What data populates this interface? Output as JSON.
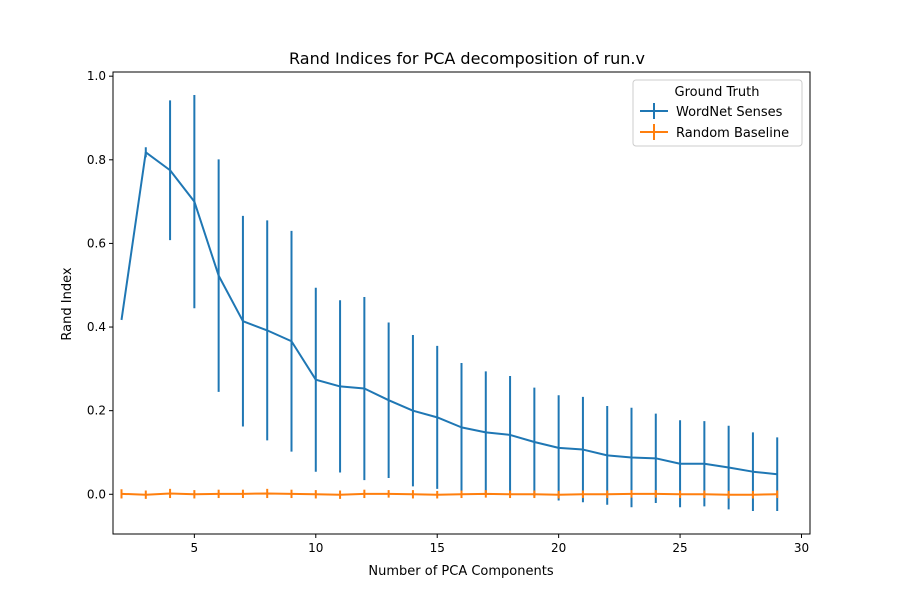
{
  "chart_data": {
    "type": "line",
    "title": "Rand Indices for PCA decomposition of run.v",
    "xlabel": "Number of PCA Components",
    "ylabel": "Rand Index",
    "xlim": [
      1.65,
      30.35
    ],
    "ylim": [
      -0.095,
      1.01
    ],
    "xticks": [
      5,
      10,
      15,
      20,
      25,
      30
    ],
    "yticks": [
      0.0,
      0.2,
      0.4,
      0.6,
      0.8,
      1.0
    ],
    "ytick_labels": [
      "0.0",
      "0.2",
      "0.4",
      "0.6",
      "0.8",
      "1.0"
    ],
    "grid": false,
    "legend": {
      "title": "Ground Truth",
      "position": "top-right"
    },
    "x": [
      2,
      3,
      4,
      5,
      6,
      7,
      8,
      9,
      10,
      11,
      12,
      13,
      14,
      15,
      16,
      17,
      18,
      19,
      20,
      21,
      22,
      23,
      24,
      25,
      26,
      27,
      28,
      29
    ],
    "series": [
      {
        "name": "WordNet Senses",
        "color": "#1f77b4",
        "values": [
          0.417,
          0.818,
          0.775,
          0.7,
          0.523,
          0.414,
          0.392,
          0.366,
          0.274,
          0.258,
          0.253,
          0.225,
          0.2,
          0.184,
          0.16,
          0.148,
          0.142,
          0.125,
          0.111,
          0.107,
          0.093,
          0.088,
          0.086,
          0.073,
          0.073,
          0.064,
          0.054,
          0.048
        ],
        "errors": [
          0.0,
          0.012,
          0.167,
          0.255,
          0.278,
          0.252,
          0.263,
          0.264,
          0.22,
          0.206,
          0.219,
          0.186,
          0.181,
          0.171,
          0.154,
          0.146,
          0.141,
          0.13,
          0.126,
          0.126,
          0.118,
          0.119,
          0.107,
          0.104,
          0.102,
          0.1,
          0.094,
          0.088
        ]
      },
      {
        "name": "Random Baseline",
        "color": "#ff7f0e",
        "values": [
          0.001,
          -0.001,
          0.002,
          0.0,
          0.001,
          0.001,
          0.002,
          0.001,
          0.0,
          -0.001,
          0.001,
          0.001,
          0.0,
          -0.001,
          0.0,
          0.001,
          0.0,
          0.0,
          -0.001,
          0.0,
          0.0,
          0.001,
          0.001,
          0.0,
          0.0,
          -0.001,
          -0.001,
          0.0
        ],
        "errors": [
          0.011,
          0.01,
          0.011,
          0.01,
          0.01,
          0.01,
          0.011,
          0.01,
          0.01,
          0.01,
          0.01,
          0.009,
          0.01,
          0.009,
          0.009,
          0.009,
          0.009,
          0.009,
          0.009,
          0.009,
          0.009,
          0.009,
          0.009,
          0.009,
          0.009,
          0.009,
          0.009,
          0.009
        ]
      }
    ]
  }
}
